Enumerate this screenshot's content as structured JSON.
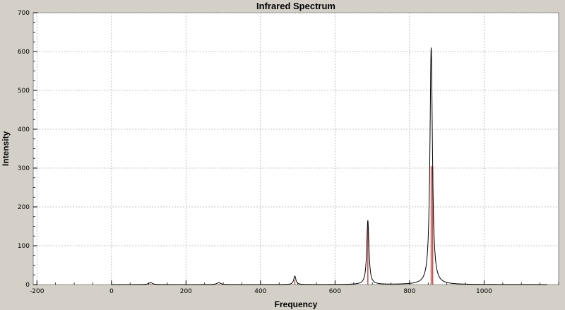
{
  "chart_data": {
    "type": "line",
    "title": "Infrared Spectrum",
    "xlabel": "Frequency",
    "ylabel": "Intensity",
    "xlim": [
      -210,
      1200
    ],
    "ylim": [
      0,
      700
    ],
    "x_ticks": [
      -200,
      0,
      200,
      400,
      600,
      800,
      1000
    ],
    "y_ticks": [
      0,
      100,
      200,
      300,
      400,
      500,
      600,
      700
    ],
    "grid": true,
    "x_range_drawn": [
      0,
      1170
    ],
    "series": [
      {
        "kind": "spectrum",
        "color": "#000000",
        "linewidth_hint": "thin",
        "peaks": [
          {
            "x": 105,
            "y": 5,
            "width": 12
          },
          {
            "x": 288,
            "y": 5,
            "width": 12
          },
          {
            "x": 492,
            "y": 22,
            "width": 7
          },
          {
            "x": 688,
            "y": 165,
            "width": 7
          },
          {
            "x": 858,
            "y": 610,
            "width": 8
          }
        ]
      },
      {
        "kind": "stick",
        "color": "#c05050",
        "sticks": [
          {
            "x": 105,
            "y": 2
          },
          {
            "x": 288,
            "y": 2
          },
          {
            "x": 492,
            "y": 12
          },
          {
            "x": 688,
            "y": 150
          },
          {
            "x": 858,
            "y": 305
          },
          {
            "x": 862,
            "y": 305
          }
        ]
      }
    ]
  }
}
